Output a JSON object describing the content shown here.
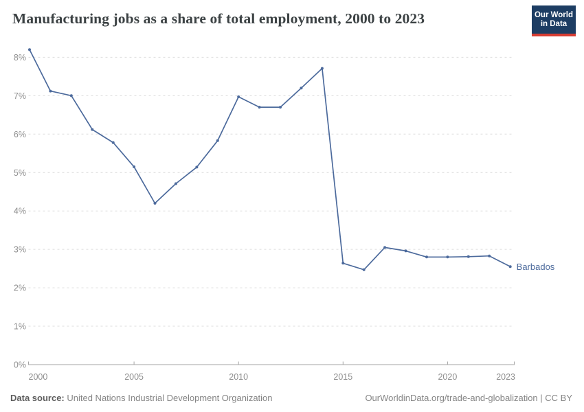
{
  "header": {
    "title": "Manufacturing jobs as a share of total employment, 2000 to 2023",
    "logo": {
      "line1": "Our World",
      "line2": "in Data",
      "bg_color": "#1d3d63",
      "accent_color": "#d73c32"
    }
  },
  "chart_data": {
    "type": "line",
    "title": "Manufacturing jobs as a share of total employment, 2000 to 2023",
    "x": [
      2000,
      2001,
      2002,
      2003,
      2004,
      2005,
      2006,
      2007,
      2008,
      2009,
      2010,
      2011,
      2012,
      2013,
      2014,
      2015,
      2016,
      2017,
      2018,
      2019,
      2020,
      2021,
      2022,
      2023
    ],
    "series": [
      {
        "name": "Barbados",
        "color": "#4C6A9C",
        "values": [
          8.2,
          7.12,
          7.0,
          6.12,
          5.78,
          5.15,
          4.2,
          4.71,
          5.14,
          5.83,
          6.97,
          6.7,
          6.7,
          7.2,
          7.71,
          2.64,
          2.47,
          3.05,
          2.96,
          2.8,
          2.8,
          2.81,
          2.83,
          2.55
        ]
      }
    ],
    "xlabel": "",
    "ylabel": "",
    "xlim": [
      2000,
      2023
    ],
    "ylim": [
      0,
      8
    ],
    "grid": "horizontal-dashed",
    "legend_position": "end-of-line-label",
    "yticks": [
      {
        "value": 0,
        "label": "0%"
      },
      {
        "value": 1,
        "label": "1%"
      },
      {
        "value": 2,
        "label": "2%"
      },
      {
        "value": 3,
        "label": "3%"
      },
      {
        "value": 4,
        "label": "4%"
      },
      {
        "value": 5,
        "label": "5%"
      },
      {
        "value": 6,
        "label": "6%"
      },
      {
        "value": 7,
        "label": "7%"
      },
      {
        "value": 8,
        "label": "8%"
      }
    ],
    "xticks": [
      {
        "value": 2000,
        "label": "2000"
      },
      {
        "value": 2005,
        "label": "2005"
      },
      {
        "value": 2010,
        "label": "2010"
      },
      {
        "value": 2015,
        "label": "2015"
      },
      {
        "value": 2020,
        "label": "2020"
      },
      {
        "value": 2023,
        "label": "2023"
      }
    ],
    "entity_label": "Barbados"
  },
  "footer": {
    "datasource_label": "Data source:",
    "datasource_value": " United Nations Industrial Development Organization",
    "credit": "OurWorldinData.org/trade-and-globalization | CC BY"
  }
}
